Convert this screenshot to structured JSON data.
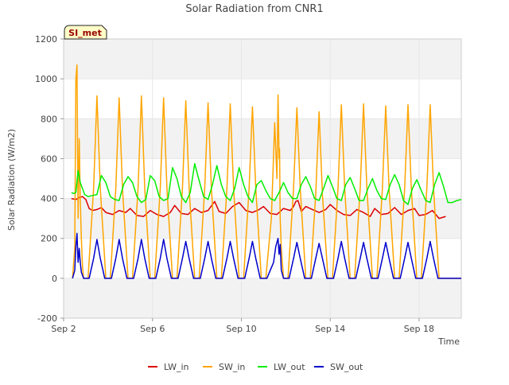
{
  "chart_data": {
    "type": "line",
    "title": "Solar Radiation from CNR1",
    "xlabel": "Time",
    "ylabel": "Solar Radiation (W/m2)",
    "site_label": "SI_met",
    "x_unit": "date (September)",
    "xlim": [
      2,
      19.9
    ],
    "ylim": [
      -200,
      1200
    ],
    "yticks": [
      -200,
      0,
      200,
      400,
      600,
      800,
      1000,
      1200
    ],
    "xticks": [
      {
        "x": 2,
        "label": "Sep 2"
      },
      {
        "x": 6,
        "label": "Sep 6"
      },
      {
        "x": 10,
        "label": "Sep 10"
      },
      {
        "x": 14,
        "label": "Sep 14"
      },
      {
        "x": 18,
        "label": "Sep 18"
      }
    ],
    "grid": true,
    "legend_position": "bottom",
    "colors": {
      "LW_in": "#dd0000",
      "SW_in": "#ffa500",
      "LW_out": "#00ee00",
      "SW_out": "#0000cc"
    },
    "series": [
      {
        "name": "LW_in",
        "x": [
          2.35,
          2.55,
          2.7,
          2.85,
          3.0,
          3.15,
          3.3,
          3.5,
          3.7,
          3.9,
          4.2,
          4.5,
          4.8,
          5.0,
          5.3,
          5.6,
          5.9,
          6.2,
          6.5,
          6.8,
          7.0,
          7.3,
          7.6,
          7.9,
          8.2,
          8.5,
          8.8,
          9.0,
          9.3,
          9.6,
          9.9,
          10.2,
          10.5,
          10.8,
          11.0,
          11.3,
          11.6,
          11.9,
          12.2,
          12.35,
          12.45,
          12.55,
          12.7,
          12.9,
          13.2,
          13.5,
          13.8,
          14.0,
          14.3,
          14.6,
          14.9,
          15.2,
          15.5,
          15.8,
          16.0,
          16.3,
          16.6,
          16.9,
          17.2,
          17.5,
          17.8,
          18.0,
          18.3,
          18.6,
          18.9,
          19.2
        ],
        "y": [
          400,
          395,
          405,
          410,
          395,
          350,
          340,
          345,
          355,
          330,
          320,
          340,
          330,
          350,
          315,
          310,
          340,
          320,
          310,
          330,
          365,
          325,
          320,
          350,
          330,
          340,
          385,
          335,
          325,
          360,
          380,
          340,
          330,
          345,
          360,
          325,
          320,
          350,
          340,
          360,
          385,
          390,
          335,
          360,
          345,
          330,
          345,
          370,
          340,
          320,
          315,
          345,
          330,
          310,
          350,
          320,
          325,
          355,
          320,
          340,
          350,
          315,
          320,
          340,
          300,
          310
        ]
      },
      {
        "name": "SW_in",
        "x": [
          2.4,
          2.5,
          2.55,
          2.6,
          2.65,
          2.7,
          2.75,
          2.8,
          2.85,
          2.9,
          3.1,
          3.35,
          3.5,
          3.65,
          3.9,
          4.1,
          4.35,
          4.5,
          4.65,
          4.9,
          5.1,
          5.35,
          5.5,
          5.65,
          5.9,
          6.1,
          6.35,
          6.5,
          6.65,
          6.9,
          7.1,
          7.35,
          7.5,
          7.65,
          7.9,
          8.1,
          8.35,
          8.5,
          8.65,
          8.9,
          9.1,
          9.35,
          9.5,
          9.65,
          9.9,
          10.1,
          10.35,
          10.5,
          10.65,
          10.9,
          11.1,
          11.35,
          11.5,
          11.6,
          11.65,
          11.7,
          11.72,
          11.75,
          11.8,
          11.9,
          12.1,
          12.35,
          12.5,
          12.65,
          12.9,
          13.1,
          13.35,
          13.5,
          13.65,
          13.9,
          14.1,
          14.35,
          14.5,
          14.65,
          14.9,
          15.1,
          15.35,
          15.5,
          15.65,
          15.9,
          16.1,
          16.35,
          16.5,
          16.65,
          16.9,
          17.1,
          17.35,
          17.5,
          17.65,
          17.9,
          18.1,
          18.35,
          18.5,
          18.65,
          18.9,
          19.1,
          19.35,
          19.5,
          19.65,
          19.9
        ],
        "y": [
          0,
          150,
          1000,
          1070,
          300,
          700,
          400,
          200,
          60,
          0,
          0,
          450,
          915,
          450,
          0,
          0,
          450,
          905,
          450,
          0,
          0,
          450,
          915,
          450,
          0,
          0,
          450,
          905,
          450,
          0,
          0,
          450,
          890,
          450,
          0,
          0,
          450,
          880,
          450,
          0,
          0,
          450,
          875,
          450,
          0,
          0,
          450,
          860,
          450,
          0,
          0,
          300,
          780,
          500,
          920,
          600,
          650,
          300,
          150,
          0,
          0,
          450,
          855,
          450,
          0,
          0,
          420,
          835,
          420,
          0,
          0,
          450,
          870,
          450,
          0,
          0,
          450,
          875,
          450,
          0,
          0,
          450,
          865,
          450,
          0,
          0,
          450,
          870,
          450,
          0,
          0,
          450,
          870,
          450,
          0,
          0,
          0,
          0,
          0,
          0
        ]
      },
      {
        "name": "LW_out",
        "x": [
          2.35,
          2.45,
          2.55,
          2.65,
          2.75,
          2.85,
          2.95,
          3.1,
          3.3,
          3.5,
          3.7,
          3.9,
          4.1,
          4.3,
          4.5,
          4.7,
          4.9,
          5.1,
          5.3,
          5.5,
          5.7,
          5.9,
          6.1,
          6.3,
          6.5,
          6.7,
          6.9,
          7.1,
          7.3,
          7.5,
          7.7,
          7.9,
          8.1,
          8.3,
          8.5,
          8.7,
          8.9,
          9.1,
          9.3,
          9.5,
          9.7,
          9.9,
          10.1,
          10.3,
          10.5,
          10.7,
          10.9,
          11.1,
          11.3,
          11.5,
          11.7,
          11.9,
          12.1,
          12.3,
          12.5,
          12.7,
          12.9,
          13.1,
          13.3,
          13.5,
          13.7,
          13.9,
          14.1,
          14.3,
          14.5,
          14.7,
          14.9,
          15.1,
          15.3,
          15.5,
          15.7,
          15.9,
          16.1,
          16.3,
          16.5,
          16.7,
          16.9,
          17.1,
          17.3,
          17.5,
          17.7,
          17.9,
          18.1,
          18.3,
          18.5,
          18.7,
          18.9,
          19.1,
          19.3,
          19.5,
          19.7,
          19.9
        ],
        "y": [
          430,
          425,
          430,
          540,
          480,
          450,
          420,
          410,
          415,
          420,
          515,
          480,
          410,
          395,
          390,
          470,
          510,
          480,
          410,
          380,
          395,
          515,
          490,
          410,
          390,
          400,
          555,
          500,
          410,
          380,
          430,
          575,
          490,
          410,
          395,
          470,
          565,
          470,
          410,
          390,
          450,
          555,
          470,
          410,
          380,
          470,
          490,
          440,
          400,
          390,
          430,
          480,
          430,
          400,
          400,
          470,
          510,
          460,
          400,
          390,
          450,
          515,
          460,
          400,
          390,
          470,
          505,
          450,
          390,
          390,
          450,
          500,
          440,
          400,
          395,
          470,
          520,
          470,
          390,
          370,
          450,
          495,
          440,
          390,
          380,
          470,
          530,
          460,
          380,
          380,
          390,
          395
        ]
      },
      {
        "name": "SW_out",
        "x": [
          2.4,
          2.5,
          2.55,
          2.6,
          2.65,
          2.7,
          2.75,
          2.8,
          2.9,
          3.0,
          3.15,
          3.35,
          3.5,
          3.65,
          3.85,
          4.15,
          4.35,
          4.5,
          4.65,
          4.85,
          5.15,
          5.35,
          5.5,
          5.65,
          5.85,
          6.15,
          6.35,
          6.5,
          6.65,
          6.85,
          7.15,
          7.35,
          7.5,
          7.65,
          7.85,
          8.15,
          8.35,
          8.5,
          8.65,
          8.85,
          9.15,
          9.35,
          9.5,
          9.65,
          9.85,
          10.15,
          10.35,
          10.5,
          10.65,
          10.85,
          11.15,
          11.45,
          11.55,
          11.65,
          11.7,
          11.75,
          11.8,
          11.9,
          12.15,
          12.35,
          12.5,
          12.65,
          12.85,
          13.15,
          13.35,
          13.5,
          13.65,
          13.85,
          14.15,
          14.35,
          14.5,
          14.65,
          14.85,
          15.15,
          15.35,
          15.5,
          15.65,
          15.85,
          16.15,
          16.35,
          16.5,
          16.65,
          16.85,
          17.15,
          17.35,
          17.5,
          17.65,
          17.85,
          18.15,
          18.35,
          18.5,
          18.65,
          18.85,
          19.15,
          19.35,
          19.5,
          19.65,
          19.9
        ],
        "y": [
          0,
          40,
          160,
          225,
          80,
          150,
          80,
          30,
          0,
          0,
          0,
          100,
          195,
          100,
          0,
          0,
          100,
          195,
          100,
          0,
          0,
          100,
          195,
          100,
          0,
          0,
          100,
          195,
          100,
          0,
          0,
          100,
          185,
          100,
          0,
          0,
          100,
          185,
          100,
          0,
          0,
          100,
          185,
          100,
          0,
          0,
          100,
          185,
          100,
          0,
          0,
          80,
          160,
          200,
          120,
          170,
          40,
          0,
          0,
          100,
          180,
          100,
          0,
          0,
          100,
          175,
          100,
          0,
          0,
          100,
          185,
          100,
          0,
          0,
          100,
          180,
          100,
          0,
          0,
          100,
          180,
          100,
          0,
          0,
          100,
          180,
          100,
          0,
          0,
          100,
          185,
          100,
          0,
          0,
          0,
          0,
          0,
          0
        ]
      }
    ]
  }
}
